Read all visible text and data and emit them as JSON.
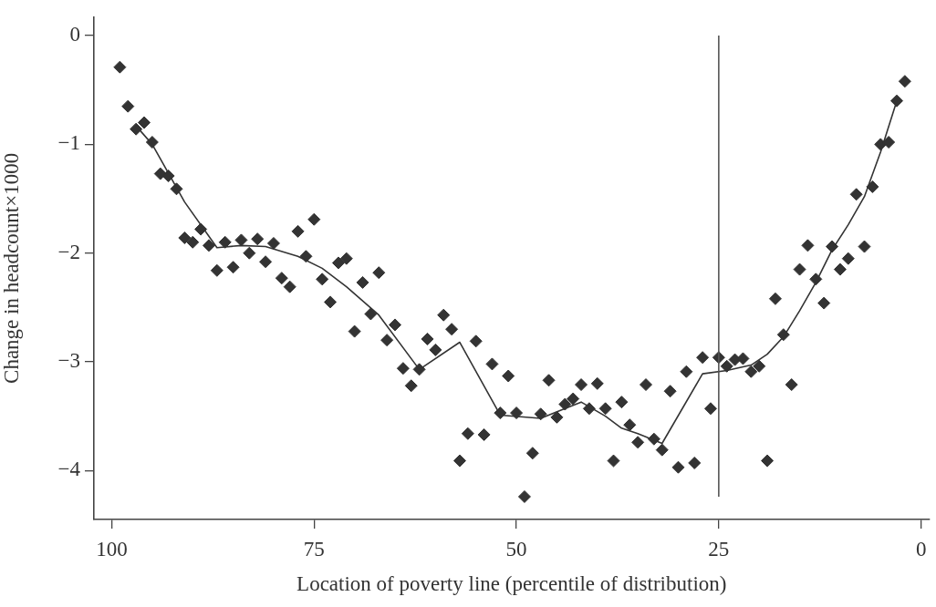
{
  "chart_data": {
    "type": "scatter",
    "xlabel": "Location of poverty line (percentile of distribution)",
    "ylabel": "Change in headcount×1000",
    "xlim": [
      102.2,
      -1
    ],
    "ylim": [
      -4.45,
      0.17
    ],
    "xticks": [
      100,
      75,
      50,
      25,
      0
    ],
    "yticks": [
      0,
      {
        "value": -1,
        "label": "−1"
      },
      {
        "value": -2,
        "label": "−2"
      },
      {
        "value": -3,
        "label": "−3"
      },
      {
        "value": -4,
        "label": "−4"
      }
    ],
    "grid": false,
    "legend": false,
    "series": [
      {
        "color": "#333333",
        "marker": "diamond",
        "x": [
          99,
          98,
          97,
          96,
          95,
          94,
          93,
          92,
          91,
          90,
          89,
          88,
          87,
          86,
          85,
          84,
          83,
          82,
          81,
          80,
          79,
          78,
          77,
          76,
          75,
          74,
          73,
          72,
          71,
          70,
          69,
          68,
          67,
          66,
          65,
          64,
          63,
          62,
          61,
          60,
          59,
          58,
          57,
          56,
          55,
          54,
          53,
          52,
          51,
          50,
          49,
          48,
          47,
          46,
          45,
          44,
          43,
          42,
          41,
          40,
          39,
          38,
          37,
          36,
          35,
          34,
          33,
          32,
          31,
          30,
          29,
          28,
          27,
          26,
          25,
          24,
          23,
          22,
          21,
          20,
          19,
          18,
          17,
          16,
          15,
          14,
          13,
          12,
          11,
          10,
          9,
          8,
          7,
          6,
          5,
          4,
          3,
          2
        ],
        "values": [
          -0.29,
          -0.65,
          -0.86,
          -0.8,
          -0.98,
          -1.27,
          -1.29,
          -1.41,
          -1.86,
          -1.9,
          -1.78,
          -1.93,
          -2.16,
          -1.9,
          -2.13,
          -1.88,
          -2.0,
          -1.87,
          -2.08,
          -1.91,
          -2.23,
          -2.31,
          -1.8,
          -2.03,
          -1.69,
          -2.24,
          -2.45,
          -2.09,
          -2.05,
          -2.72,
          -2.27,
          -2.56,
          -2.18,
          -2.8,
          -2.66,
          -3.06,
          -3.22,
          -3.07,
          -2.79,
          -2.89,
          -2.57,
          -2.7,
          -3.91,
          -3.66,
          -2.81,
          -3.67,
          -3.02,
          -3.47,
          -3.13,
          -3.47,
          -4.24,
          -3.84,
          -3.48,
          -3.17,
          -3.51,
          -3.39,
          -3.34,
          -3.21,
          -3.43,
          -3.2,
          -3.43,
          -3.91,
          -3.37,
          -3.58,
          -3.74,
          -3.21,
          -3.71,
          -3.81,
          -3.27,
          -3.97,
          -3.09,
          -3.93,
          -2.96,
          -3.43,
          -2.96,
          -3.04,
          -2.98,
          -2.97,
          -3.09,
          -3.04,
          -3.91,
          -2.42,
          -2.75,
          -3.21,
          -2.15,
          -1.93,
          -2.24,
          -2.46,
          -1.94,
          -2.15,
          -2.05,
          -1.46,
          -1.94,
          -1.39,
          -1.0,
          -0.98,
          -0.6,
          -0.42
        ]
      },
      {
        "type": "line",
        "color": "#333333",
        "marker": "none",
        "x": [
          97,
          95,
          91,
          87,
          84,
          81,
          77,
          74,
          71,
          67,
          62,
          57,
          52,
          47,
          44,
          42,
          39,
          37,
          35,
          32,
          27,
          24,
          21,
          19,
          17,
          15,
          13,
          11,
          9,
          7,
          5,
          3
        ],
        "values": [
          -0.83,
          -1.0,
          -1.53,
          -1.95,
          -1.93,
          -1.94,
          -2.03,
          -2.14,
          -2.31,
          -2.57,
          -3.07,
          -2.82,
          -3.49,
          -3.52,
          -3.43,
          -3.37,
          -3.5,
          -3.61,
          -3.66,
          -3.75,
          -3.11,
          -3.08,
          -3.03,
          -2.93,
          -2.77,
          -2.53,
          -2.27,
          -1.97,
          -1.74,
          -1.48,
          -1.07,
          -0.6
        ]
      }
    ],
    "ref_lines": [
      {
        "axis": "x",
        "value": 25,
        "color": "#555555"
      }
    ]
  }
}
